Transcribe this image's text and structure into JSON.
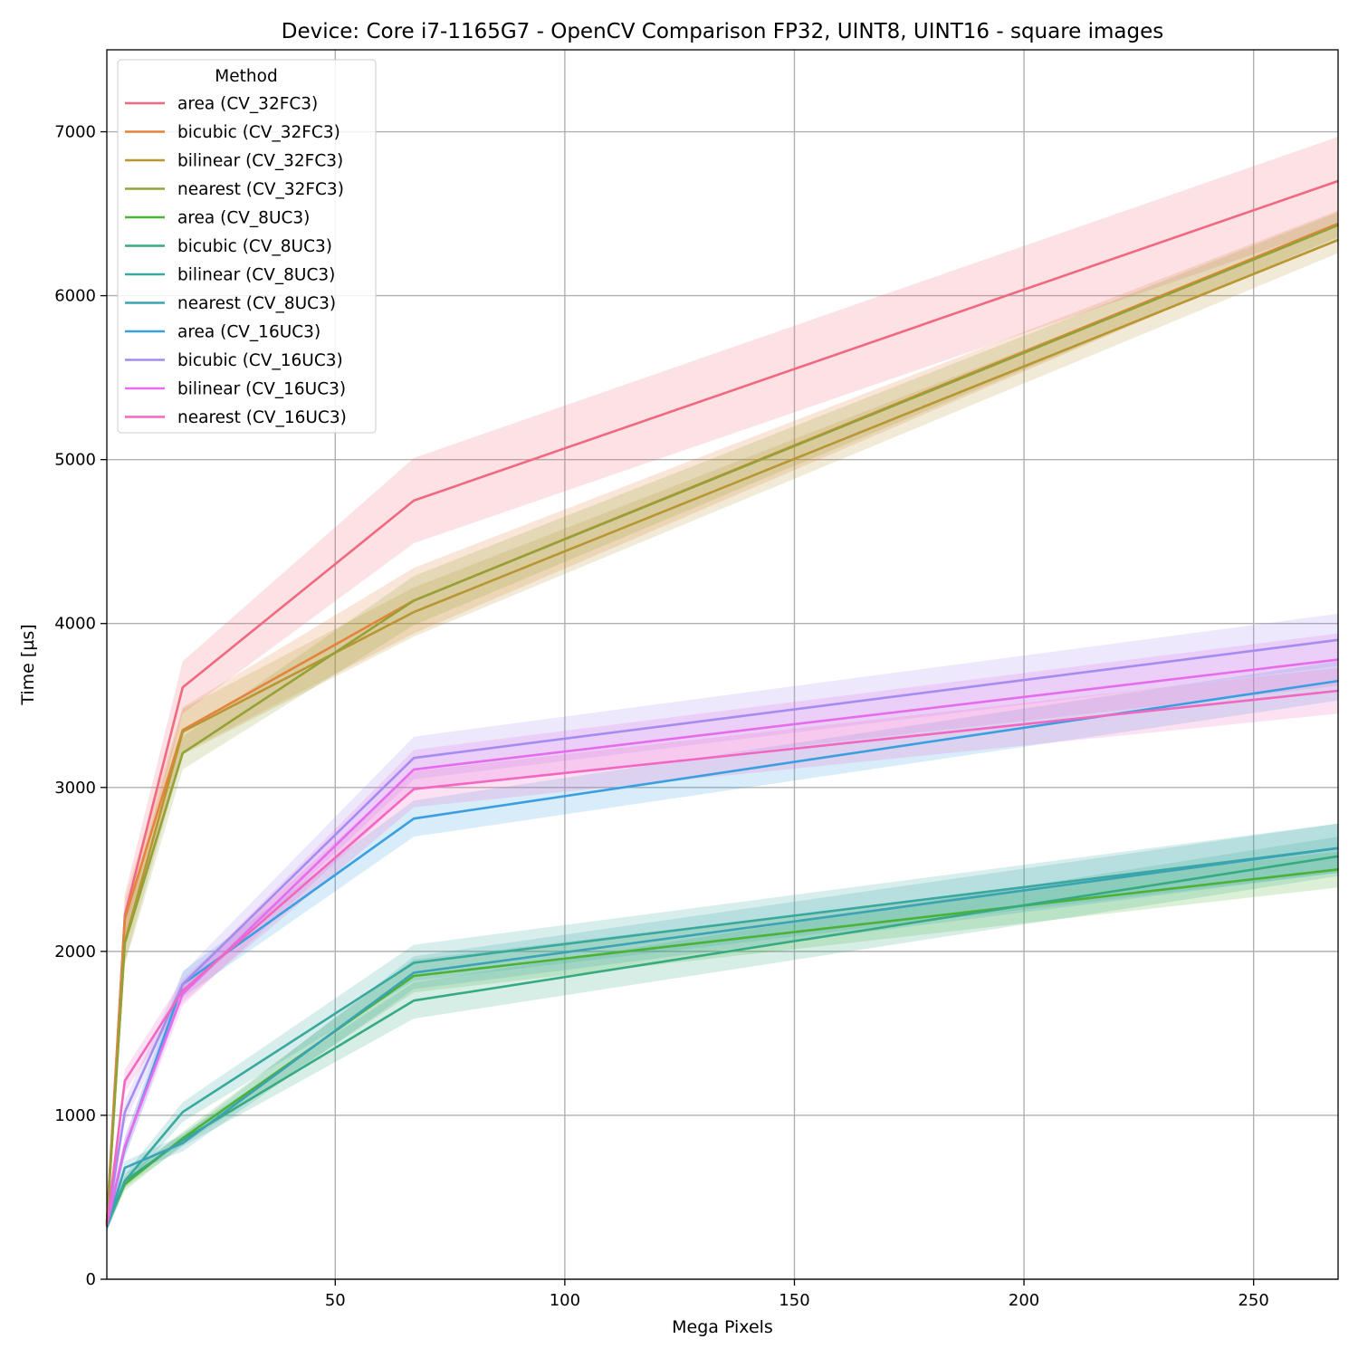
{
  "chart_data": {
    "type": "line",
    "title": "Device: Core i7-1165G7 - OpenCV Comparison FP32, UINT8, UINT16 - square images",
    "xlabel": "Mega Pixels",
    "ylabel": "Time [µs]",
    "xlim": [
      0.26,
      268.4
    ],
    "ylim": [
      0,
      7500
    ],
    "xticks": [
      50,
      100,
      150,
      200,
      250
    ],
    "yticks": [
      0,
      1000,
      2000,
      3000,
      4000,
      5000,
      6000,
      7000
    ],
    "grid": true,
    "legend_title": "Method",
    "legend_position": "top-left",
    "x": [
      0.26,
      4.19,
      16.78,
      67.11,
      268.44
    ],
    "series": [
      {
        "name": "area (CV_32FC3)",
        "color": "#f0697f",
        "values": [
          350,
          2220,
          3610,
          4750,
          6700
        ],
        "band": [
          60,
          130,
          160,
          260,
          270
        ]
      },
      {
        "name": "bicubic (CV_32FC3)",
        "color": "#e5833c",
        "values": [
          340,
          2200,
          3350,
          4140,
          6440
        ],
        "band": [
          40,
          120,
          140,
          200,
          80
        ]
      },
      {
        "name": "bilinear (CV_32FC3)",
        "color": "#b89634",
        "values": [
          340,
          2060,
          3340,
          4070,
          6340
        ],
        "band": [
          40,
          130,
          140,
          150,
          80
        ]
      },
      {
        "name": "nearest (CV_32FC3)",
        "color": "#93a237",
        "values": [
          340,
          2050,
          3210,
          4140,
          6430
        ],
        "band": [
          40,
          130,
          100,
          150,
          80
        ]
      },
      {
        "name": "area (CV_8UC3)",
        "color": "#4cb234",
        "values": [
          330,
          580,
          860,
          1850,
          2500
        ],
        "band": [
          30,
          40,
          40,
          100,
          110
        ]
      },
      {
        "name": "bicubic (CV_8UC3)",
        "color": "#36ab82",
        "values": [
          320,
          600,
          850,
          1700,
          2580
        ],
        "band": [
          30,
          40,
          40,
          110,
          120
        ]
      },
      {
        "name": "bilinear (CV_8UC3)",
        "color": "#39a9a0",
        "values": [
          320,
          600,
          1020,
          1930,
          2630
        ],
        "band": [
          30,
          40,
          60,
          110,
          150
        ]
      },
      {
        "name": "nearest (CV_8UC3)",
        "color": "#3ba3b5",
        "values": [
          320,
          680,
          830,
          1870,
          2630
        ],
        "band": [
          30,
          40,
          50,
          100,
          150
        ]
      },
      {
        "name": "area (CV_16UC3)",
        "color": "#3a9fe0",
        "values": [
          330,
          800,
          1800,
          2810,
          3650
        ],
        "band": [
          40,
          60,
          80,
          110,
          120
        ]
      },
      {
        "name": "bicubic (CV_16UC3)",
        "color": "#a48cf0",
        "values": [
          330,
          1020,
          1800,
          3180,
          3900
        ],
        "band": [
          40,
          70,
          70,
          130,
          160
        ]
      },
      {
        "name": "bilinear (CV_16UC3)",
        "color": "#e76ced",
        "values": [
          330,
          810,
          1740,
          3110,
          3780
        ],
        "band": [
          40,
          60,
          70,
          120,
          160
        ]
      },
      {
        "name": "nearest (CV_16UC3)",
        "color": "#f167c2",
        "values": [
          330,
          1210,
          1760,
          2990,
          3590
        ],
        "band": [
          40,
          70,
          70,
          110,
          140
        ]
      }
    ]
  }
}
